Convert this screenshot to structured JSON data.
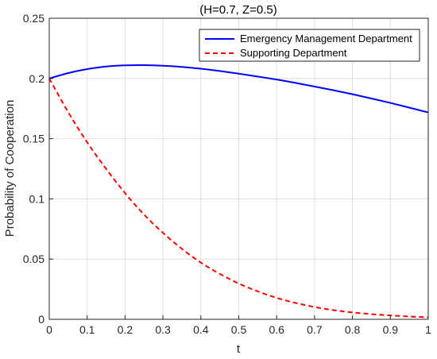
{
  "chart_data": {
    "type": "line",
    "title": "(H=0.7, Z=0.5)",
    "xlabel": "t",
    "ylabel": "Probability of Cooperation",
    "xlim": [
      0,
      1
    ],
    "ylim": [
      0,
      0.25
    ],
    "xticks": [
      0,
      0.1,
      0.2,
      0.3,
      0.4,
      0.5,
      0.6,
      0.7,
      0.8,
      0.9,
      1
    ],
    "yticks": [
      0,
      0.05,
      0.1,
      0.15,
      0.2,
      0.25
    ],
    "xtick_labels": [
      "0",
      "0.1",
      "0.2",
      "0.3",
      "0.4",
      "0.5",
      "0.6",
      "0.7",
      "0.8",
      "0.9",
      "1"
    ],
    "ytick_labels": [
      "0",
      "0.05",
      "0.1",
      "0.15",
      "0.2",
      "0.25"
    ],
    "grid": true,
    "legend_position": "top-right",
    "x": [
      0,
      0.05,
      0.1,
      0.15,
      0.2,
      0.25,
      0.3,
      0.35,
      0.4,
      0.45,
      0.5,
      0.55,
      0.6,
      0.65,
      0.7,
      0.75,
      0.8,
      0.85,
      0.9,
      0.95,
      1.0
    ],
    "series": [
      {
        "name": "Emergency Management Department",
        "color": "#0000ff",
        "style": "solid",
        "values": [
          0.2,
          0.2045,
          0.2078,
          0.2099,
          0.2109,
          0.2111,
          0.2106,
          0.2096,
          0.2081,
          0.2062,
          0.204,
          0.2016,
          0.1991,
          0.1963,
          0.1933,
          0.1902,
          0.1869,
          0.1834,
          0.1797,
          0.1758,
          0.1718
        ]
      },
      {
        "name": "Supporting Department",
        "color": "#ff0000",
        "style": "dashed",
        "values": [
          0.2,
          0.172,
          0.147,
          0.125,
          0.1048,
          0.087,
          0.0718,
          0.0585,
          0.0471,
          0.0377,
          0.0297,
          0.0232,
          0.0178,
          0.0136,
          0.0102,
          0.0076,
          0.0057,
          0.0043,
          0.0032,
          0.0023,
          0.0017
        ]
      }
    ]
  }
}
